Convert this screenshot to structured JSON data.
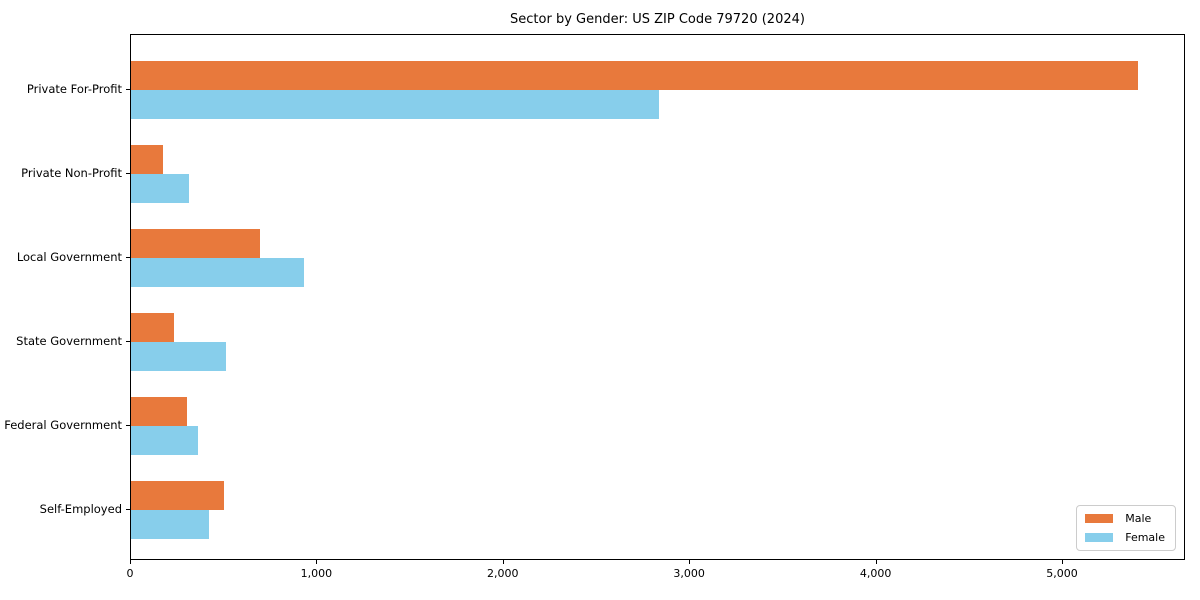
{
  "title": "Sector by Gender: US ZIP Code 79720 (2024)",
  "colors": {
    "male": "#e8793c",
    "female": "#87ceeb",
    "axis": "#000000",
    "background": "#ffffff",
    "legend_border": "#cccccc"
  },
  "legend": {
    "position": "lower right",
    "items": [
      {
        "label": "Male",
        "color": "#e8793c",
        "swatch": "male-swatch"
      },
      {
        "label": "Female",
        "color": "#87ceeb",
        "swatch": "female-swatch"
      }
    ]
  },
  "chart_data": {
    "type": "bar",
    "orientation": "horizontal",
    "title": "Sector by Gender: US ZIP Code 79720 (2024)",
    "categories": [
      "Private For-Profit",
      "Private Non-Profit",
      "Local Government",
      "State Government",
      "Federal Government",
      "Self-Employed"
    ],
    "series": [
      {
        "name": "Male",
        "color": "#e8793c",
        "values": [
          5400,
          170,
          690,
          230,
          300,
          500
        ]
      },
      {
        "name": "Female",
        "color": "#87ceeb",
        "values": [
          2830,
          310,
          930,
          510,
          360,
          420
        ]
      }
    ],
    "xlabel": "",
    "ylabel": "",
    "xlim": [
      0,
      5660
    ],
    "xticks": [
      0,
      1000,
      2000,
      3000,
      4000,
      5000
    ],
    "xtick_labels": [
      "0",
      "1,000",
      "2,000",
      "3,000",
      "4,000",
      "5,000"
    ],
    "grid": false,
    "legend_position": "lower right"
  }
}
